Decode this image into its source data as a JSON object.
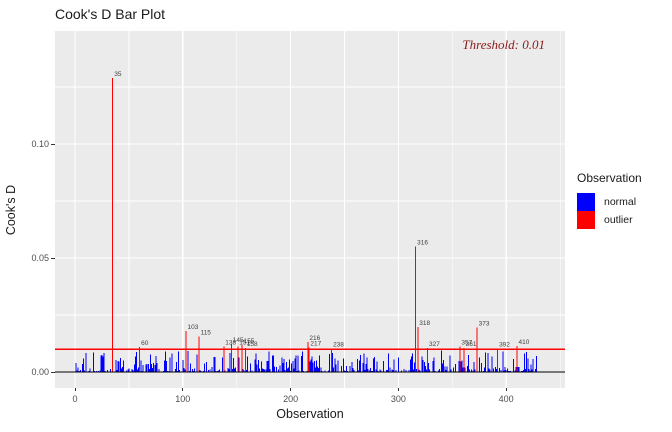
{
  "title": "Cook's D Bar Plot",
  "annotation": {
    "text": "Threshold: 0.01",
    "color": "#8B1A1A"
  },
  "legend": {
    "title": "Observation",
    "items": [
      {
        "label": "normal",
        "color": "#0000FF"
      },
      {
        "label": "outlier",
        "color": "#FF0000"
      }
    ]
  },
  "chart_data": {
    "type": "bar",
    "title": "Cook's D Bar Plot",
    "xlabel": "Observation",
    "ylabel": "Cook's D",
    "threshold": 0.01,
    "annotation_text": "Threshold: 0.01",
    "xlim": [
      -18.5,
      455
    ],
    "ylim": [
      0,
      0.1495
    ],
    "x_ticks": {
      "values": [
        0,
        100,
        200,
        300,
        400
      ],
      "labels": [
        "0",
        "100",
        "200",
        "300",
        "400"
      ]
    },
    "y_ticks": {
      "values": [
        0,
        0.05,
        0.1
      ],
      "labels": [
        "0.00",
        "0.05",
        "0.10"
      ]
    },
    "x_minor_gridlines": [
      50,
      150,
      250,
      350,
      450
    ],
    "y_minor_gridlines": [
      0.025,
      0.075,
      0.125
    ],
    "grid": true,
    "legend_position": "right",
    "series_legend": [
      "normal",
      "outlier"
    ],
    "outliers": [
      {
        "obs": 35,
        "value": 0.129
      },
      {
        "obs": 60,
        "value": 0.011
      },
      {
        "obs": 103,
        "value": 0.018
      },
      {
        "obs": 115,
        "value": 0.0155
      },
      {
        "obs": 138,
        "value": 0.0112
      },
      {
        "obs": 145,
        "value": 0.0122
      },
      {
        "obs": 151,
        "value": 0.0112
      },
      {
        "obs": 155,
        "value": 0.0118
      },
      {
        "obs": 158,
        "value": 0.0106
      },
      {
        "obs": 216,
        "value": 0.0132
      },
      {
        "obs": 217,
        "value": 0.0108
      },
      {
        "obs": 238,
        "value": 0.0104
      },
      {
        "obs": 316,
        "value": 0.055
      },
      {
        "obs": 318,
        "value": 0.0198
      },
      {
        "obs": 327,
        "value": 0.0106
      },
      {
        "obs": 357,
        "value": 0.0112
      },
      {
        "obs": 361,
        "value": 0.0105
      },
      {
        "obs": 373,
        "value": 0.0195
      },
      {
        "obs": 392,
        "value": 0.0104
      },
      {
        "obs": 410,
        "value": 0.0115
      }
    ],
    "normal_bars": {
      "generated": true,
      "note": "dense unlabeled bars, values below threshold, not individually readable",
      "count": 428,
      "value_range": [
        0.0002,
        0.0095
      ],
      "seed": 20
    },
    "colors": {
      "normal": "#0000FF",
      "outlier": "#FF0000",
      "threshold_line": "#FF0000",
      "zero_line": "#000000",
      "panel_bg": "#EBEBEB",
      "gridline": "#FFFFFF",
      "tick_label": "#4D4D4D",
      "bar_label": "#404040",
      "annotation": "#8B1A1A"
    }
  }
}
